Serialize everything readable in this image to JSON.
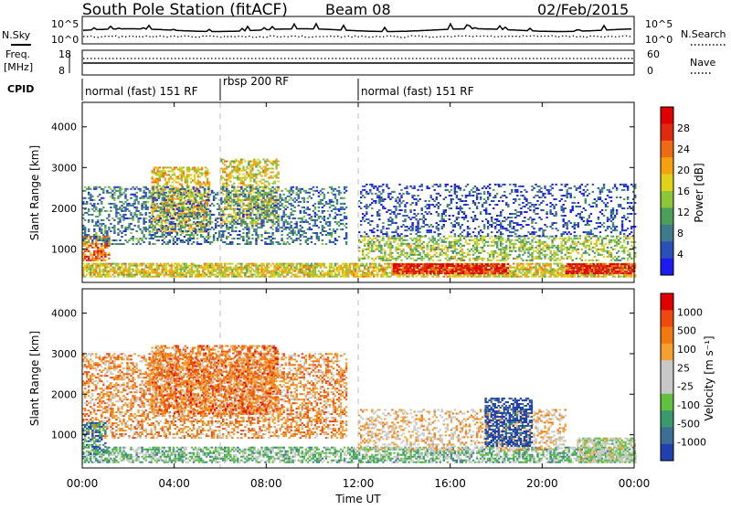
{
  "header": {
    "station": "South Pole Station (fitACF)",
    "beam": "Beam 08",
    "date": "02/Feb/2015"
  },
  "noise_panel": {
    "left_label": "N.Sky",
    "left_ticks": [
      "10^5",
      "10^0"
    ],
    "right_ticks": [
      "10^5",
      "10^0"
    ],
    "right_label": "N.Search"
  },
  "freq_panel": {
    "left_label_top": "Freq.",
    "left_label_bottom": "[MHz]",
    "left_ticks": [
      "18",
      "8"
    ],
    "right_ticks": [
      "60",
      "0"
    ],
    "right_label": "Nave"
  },
  "cpid": {
    "label": "CPID",
    "segments": [
      {
        "text": "normal (fast) 151 RF",
        "start": 0,
        "end": 6
      },
      {
        "text": "rbsp 200 RF",
        "start": 6,
        "end": 12
      },
      {
        "text": "normal (fast) 151 RF",
        "start": 12,
        "end": 24
      }
    ]
  },
  "time_axis": {
    "ticks": [
      "00:00",
      "04:00",
      "08:00",
      "12:00",
      "16:00",
      "20:00",
      "00:00"
    ],
    "label": "Time UT"
  },
  "chart_data": [
    {
      "type": "heatmap",
      "ylabel": "Slant Range [km]",
      "yticks": [
        "4000",
        "3000",
        "2000",
        "1000"
      ],
      "ylim": [
        180,
        4600
      ],
      "xlim": [
        0,
        24
      ],
      "colorbar": {
        "label": "Power [dB]",
        "ticks": [
          "28",
          "24",
          "20",
          "16",
          "12",
          "8",
          "4"
        ],
        "colors": [
          "#1c1cf0",
          "#2a50b8",
          "#3e7a8a",
          "#4c9f5a",
          "#8ec63a",
          "#e0d21a",
          "#f5a010",
          "#ee6a14",
          "#e02a10",
          "#e00000"
        ]
      },
      "regions": [
        {
          "t0": 0.0,
          "t1": 24.0,
          "r0": 300,
          "r1": 650,
          "value": 0.55,
          "density": 0.75
        },
        {
          "t0": 13.5,
          "t1": 18.5,
          "r0": 380,
          "r1": 620,
          "value": 0.9,
          "density": 0.8
        },
        {
          "t0": 21.0,
          "t1": 24.0,
          "r0": 380,
          "r1": 620,
          "value": 0.9,
          "density": 0.8
        },
        {
          "t0": 0.0,
          "t1": 1.2,
          "r0": 700,
          "r1": 1300,
          "value": 0.75,
          "density": 0.6
        },
        {
          "t0": 3.0,
          "t1": 5.5,
          "r0": 1400,
          "r1": 3000,
          "value": 0.6,
          "density": 0.55
        },
        {
          "t0": 6.0,
          "t1": 8.5,
          "r0": 1600,
          "r1": 3200,
          "value": 0.55,
          "density": 0.5
        },
        {
          "t0": 0.0,
          "t1": 11.5,
          "r0": 1100,
          "r1": 2500,
          "value": 0.25,
          "density": 0.35
        },
        {
          "t0": 12.0,
          "t1": 24.0,
          "r0": 700,
          "r1": 1300,
          "value": 0.45,
          "density": 0.45
        },
        {
          "t0": 12.0,
          "t1": 24.0,
          "r0": 1300,
          "r1": 2600,
          "value": 0.15,
          "density": 0.25
        }
      ]
    },
    {
      "type": "heatmap",
      "ylabel": "Slant Range [km]",
      "yticks": [
        "4000",
        "3000",
        "2000",
        "1000"
      ],
      "ylim": [
        180,
        4600
      ],
      "xlim": [
        0,
        24
      ],
      "colorbar": {
        "label": "Velocity [m s⁻¹]",
        "ticks": [
          "1000",
          "500",
          "100",
          "25",
          "-25",
          "-100",
          "-500",
          "-1000"
        ],
        "colors": [
          "#2040b0",
          "#3c6e96",
          "#3a9a6e",
          "#62c040",
          "#c8c8c8",
          "#c8c8c8",
          "#f5a030",
          "#f07a10",
          "#ee4a10",
          "#e00000"
        ]
      },
      "regions": [
        {
          "t0": 0.0,
          "t1": 24.0,
          "r0": 300,
          "r1": 700,
          "value": 0.35,
          "density": 0.6
        },
        {
          "t0": 0.0,
          "t1": 11.5,
          "r0": 900,
          "r1": 3000,
          "value": 0.7,
          "density": 0.45
        },
        {
          "t0": 3.0,
          "t1": 8.5,
          "r0": 1500,
          "r1": 3200,
          "value": 0.75,
          "density": 0.55
        },
        {
          "t0": 12.0,
          "t1": 21.0,
          "r0": 600,
          "r1": 1600,
          "value": 0.6,
          "density": 0.35
        },
        {
          "t0": 17.5,
          "t1": 19.5,
          "r0": 700,
          "r1": 1900,
          "value": 0.05,
          "density": 0.6
        },
        {
          "t0": 21.5,
          "t1": 24.0,
          "r0": 300,
          "r1": 900,
          "value": 0.45,
          "density": 0.7
        },
        {
          "t0": 0.0,
          "t1": 1.0,
          "r0": 500,
          "r1": 1300,
          "value": 0.2,
          "density": 0.55
        }
      ]
    }
  ]
}
